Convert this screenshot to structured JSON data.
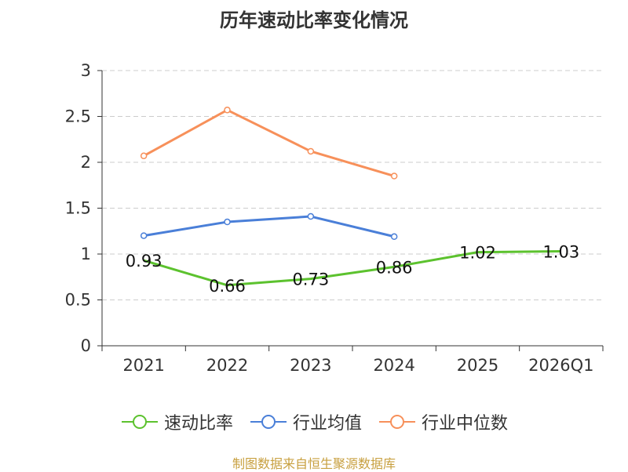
{
  "chart_data": {
    "type": "line",
    "title": "历年速动比率变化情况",
    "categories": [
      "2021",
      "2022",
      "2023",
      "2024",
      "2025",
      "2026Q1"
    ],
    "ylim": [
      0,
      3
    ],
    "yticks": [
      "0",
      "0.5",
      "1",
      "1.5",
      "2",
      "2.5",
      "3"
    ],
    "ytick_values": [
      0,
      0.5,
      1,
      1.5,
      2,
      2.5,
      3
    ],
    "grid": true,
    "legend_position": "bottom",
    "series": [
      {
        "name": "速动比率",
        "color": "#5cc22e",
        "markers": false,
        "show_labels": true,
        "values": [
          0.93,
          0.66,
          0.73,
          0.86,
          1.02,
          1.03
        ],
        "labels": [
          "0.93",
          "0.66",
          "0.73",
          "0.86",
          "1.02",
          "1.03"
        ]
      },
      {
        "name": "行业均值",
        "color": "#4a7fd8",
        "markers": true,
        "show_labels": false,
        "values": [
          1.2,
          1.35,
          1.41,
          1.19,
          null,
          null
        ]
      },
      {
        "name": "行业中位数",
        "color": "#f7905a",
        "markers": true,
        "show_labels": false,
        "values": [
          2.07,
          2.57,
          2.12,
          1.85,
          null,
          null
        ]
      }
    ]
  },
  "source": "制图数据来自恒生聚源数据库"
}
